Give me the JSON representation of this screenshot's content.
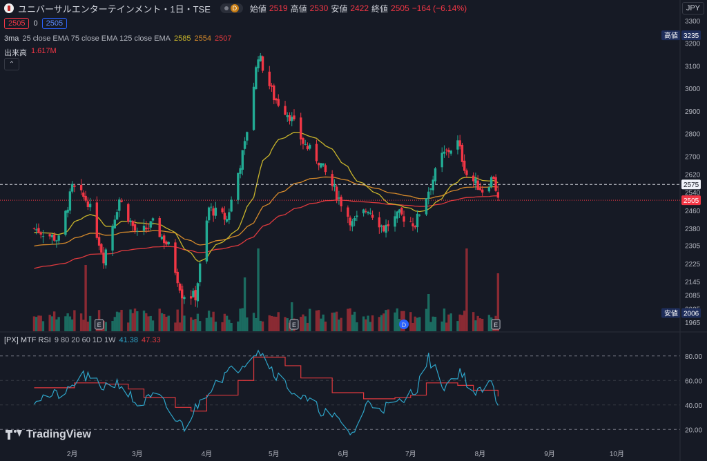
{
  "header": {
    "symbol": "ユニバーサルエンターテインメント・1日・TSE",
    "badge": "D",
    "open_label": "始値",
    "open": "2519",
    "high_label": "高値",
    "high": "2530",
    "low_label": "安値",
    "low": "2422",
    "close_label": "終値",
    "close": "2505",
    "change": "−164 (−6.14%)",
    "bid": "2505",
    "spread": "0",
    "ask": "2505",
    "currency": "JPY",
    "ma_prefix": "3ma",
    "ma_desc": "25 close EMA 75 close EMA 125 close EMA",
    "ma_values": [
      "2585",
      "2554",
      "2507"
    ],
    "volume_label": "出来高",
    "volume_value": "1.617M",
    "collapse_icon": "chevron-up-icon"
  },
  "rsi_header": {
    "name": "[PX] MTF RSI",
    "params": "9 80 20 60 1D 1W",
    "v1": "41.38",
    "v2": "47.33"
  },
  "price_axis": {
    "ticks": [
      "3300",
      "3200",
      "3100",
      "3000",
      "2900",
      "2800",
      "2700",
      "2620",
      "2540",
      "2460",
      "2380",
      "2305",
      "2225",
      "2145",
      "2085",
      "2025",
      "1965"
    ],
    "high_tag": {
      "label": "高値",
      "value": "3235"
    },
    "low_tag": {
      "label": "安値",
      "value": "2006"
    },
    "current_tag": "2575",
    "last_tag": "2505"
  },
  "rsi_axis": {
    "ticks": [
      "80.00",
      "60.00",
      "40.00",
      "20.00"
    ]
  },
  "time_axis": {
    "labels": [
      "2月",
      "3月",
      "4月",
      "5月",
      "6月",
      "7月",
      "8月",
      "9月",
      "10月"
    ]
  },
  "events": [
    "E",
    "E",
    "D",
    "E"
  ],
  "brand": "TradingView",
  "colors": {
    "up": "#22ab94",
    "down": "#f23645",
    "ema25": "#c9b52b",
    "ema75": "#d68a2b",
    "ema125": "#e03a3e",
    "rsi": "#2ea5c9",
    "rsi_mtf": "#e0393e",
    "bg": "#161a25"
  },
  "chart_data": {
    "type": "candlestick",
    "price_ylim": [
      1925,
      3330
    ],
    "rsi_ylim": [
      10,
      90
    ],
    "ohlc_anchors": [
      {
        "date": "2024-01-15",
        "close": 2380
      },
      {
        "date": "2024-01-26",
        "close": 2330
      },
      {
        "date": "2024-02-01",
        "close": 2560
      },
      {
        "date": "2024-02-08",
        "close": 2500
      },
      {
        "date": "2024-02-15",
        "close": 2250
      },
      {
        "date": "2024-02-22",
        "close": 2510
      },
      {
        "date": "2024-03-01",
        "close": 2350
      },
      {
        "date": "2024-03-08",
        "close": 2400
      },
      {
        "date": "2024-03-15",
        "close": 2300
      },
      {
        "date": "2024-03-21",
        "close": 2090
      },
      {
        "date": "2024-03-27",
        "close": 2080
      },
      {
        "date": "2024-04-02",
        "close": 2470
      },
      {
        "date": "2024-04-10",
        "close": 2420
      },
      {
        "date": "2024-04-18",
        "close": 2750
      },
      {
        "date": "2024-04-24",
        "close": 3150
      },
      {
        "date": "2024-05-01",
        "close": 2960
      },
      {
        "date": "2024-05-08",
        "close": 2880
      },
      {
        "date": "2024-05-14",
        "close": 2760
      },
      {
        "date": "2024-05-21",
        "close": 2680
      },
      {
        "date": "2024-05-28",
        "close": 2550
      },
      {
        "date": "2024-06-05",
        "close": 2400
      },
      {
        "date": "2024-06-12",
        "close": 2470
      },
      {
        "date": "2024-06-19",
        "close": 2380
      },
      {
        "date": "2024-06-26",
        "close": 2440
      },
      {
        "date": "2024-07-03",
        "close": 2400
      },
      {
        "date": "2024-07-09",
        "close": 2550
      },
      {
        "date": "2024-07-15",
        "close": 2700
      },
      {
        "date": "2024-07-22",
        "close": 2760
      },
      {
        "date": "2024-07-26",
        "close": 2620
      },
      {
        "date": "2024-08-02",
        "close": 2550
      },
      {
        "date": "2024-08-07",
        "close": 2610
      },
      {
        "date": "2024-08-09",
        "close": 2505
      }
    ],
    "rsi_anchors": [
      {
        "date": "2024-01-15",
        "rsi": 45
      },
      {
        "date": "2024-01-30",
        "rsi": 50
      },
      {
        "date": "2024-02-05",
        "rsi": 65
      },
      {
        "date": "2024-02-14",
        "rsi": 55
      },
      {
        "date": "2024-02-22",
        "rsi": 58
      },
      {
        "date": "2024-03-01",
        "rsi": 40
      },
      {
        "date": "2024-03-10",
        "rsi": 48
      },
      {
        "date": "2024-03-18",
        "rsi": 28
      },
      {
        "date": "2024-03-22",
        "rsi": 22
      },
      {
        "date": "2024-03-28",
        "rsi": 40
      },
      {
        "date": "2024-04-05",
        "rsi": 60
      },
      {
        "date": "2024-04-16",
        "rsi": 72
      },
      {
        "date": "2024-04-24",
        "rsi": 86
      },
      {
        "date": "2024-05-02",
        "rsi": 65
      },
      {
        "date": "2024-05-10",
        "rsi": 50
      },
      {
        "date": "2024-05-20",
        "rsi": 38
      },
      {
        "date": "2024-05-29",
        "rsi": 28
      },
      {
        "date": "2024-06-05",
        "rsi": 16
      },
      {
        "date": "2024-06-12",
        "rsi": 42
      },
      {
        "date": "2024-06-19",
        "rsi": 38
      },
      {
        "date": "2024-06-27",
        "rsi": 42
      },
      {
        "date": "2024-07-04",
        "rsi": 55
      },
      {
        "date": "2024-07-09",
        "rsi": 78
      },
      {
        "date": "2024-07-16",
        "rsi": 55
      },
      {
        "date": "2024-07-23",
        "rsi": 68
      },
      {
        "date": "2024-07-30",
        "rsi": 48
      },
      {
        "date": "2024-08-06",
        "rsi": 58
      },
      {
        "date": "2024-08-09",
        "rsi": 41
      }
    ],
    "rsi_mtf_anchors": [
      {
        "date": "2024-01-15",
        "rsi": 54
      },
      {
        "date": "2024-01-29",
        "rsi": 54
      },
      {
        "date": "2024-02-02",
        "rsi": 58
      },
      {
        "date": "2024-02-16",
        "rsi": 57
      },
      {
        "date": "2024-02-26",
        "rsi": 53
      },
      {
        "date": "2024-03-04",
        "rsi": 46
      },
      {
        "date": "2024-03-18",
        "rsi": 38
      },
      {
        "date": "2024-03-25",
        "rsi": 35
      },
      {
        "date": "2024-04-01",
        "rsi": 48
      },
      {
        "date": "2024-04-15",
        "rsi": 60
      },
      {
        "date": "2024-04-22",
        "rsi": 79
      },
      {
        "date": "2024-05-06",
        "rsi": 72
      },
      {
        "date": "2024-05-13",
        "rsi": 62
      },
      {
        "date": "2024-05-27",
        "rsi": 50
      },
      {
        "date": "2024-06-10",
        "rsi": 45
      },
      {
        "date": "2024-06-24",
        "rsi": 46
      },
      {
        "date": "2024-07-01",
        "rsi": 48
      },
      {
        "date": "2024-07-08",
        "rsi": 58
      },
      {
        "date": "2024-07-22",
        "rsi": 56
      },
      {
        "date": "2024-07-29",
        "rsi": 52
      },
      {
        "date": "2024-08-09",
        "rsi": 47
      }
    ],
    "volume_spikes": [
      {
        "date": "2024-02-07",
        "v": 0.8
      },
      {
        "date": "2024-03-21",
        "v": 0.55
      },
      {
        "date": "2024-04-24",
        "v": 1.0
      },
      {
        "date": "2024-04-18",
        "v": 0.65
      },
      {
        "date": "2024-05-09",
        "v": 0.35
      },
      {
        "date": "2024-07-09",
        "v": 0.45
      },
      {
        "date": "2024-07-26",
        "v": 1.0
      },
      {
        "date": "2024-08-09",
        "v": 0.7
      }
    ]
  }
}
